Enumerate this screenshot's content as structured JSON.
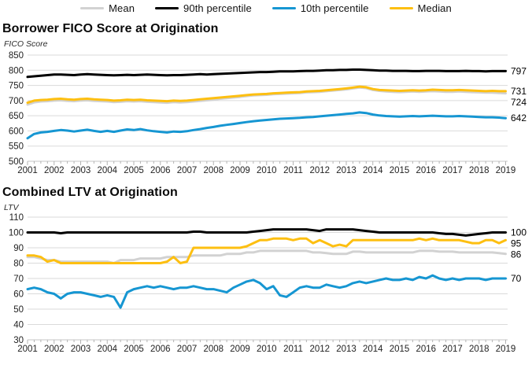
{
  "legend": {
    "items": [
      {
        "label": "Mean",
        "color": "#d2d2d2"
      },
      {
        "label": "90th percentile",
        "color": "#000000"
      },
      {
        "label": "10th percentile",
        "color": "#1696d2"
      },
      {
        "label": "Median",
        "color": "#fdbf11"
      }
    ]
  },
  "colors": {
    "grid": "#dadada",
    "axis": "#c4c4c4",
    "tick": "#b3b3b3",
    "text": "#222222"
  },
  "chart_data": [
    {
      "type": "line",
      "title": "Borrower FICO Score at Origination",
      "ylabel": "FICO Score",
      "xlabel": "",
      "x_start": 2001,
      "x_step": 0.25,
      "xticks": [
        2001,
        2002,
        2003,
        2004,
        2005,
        2006,
        2007,
        2008,
        2009,
        2010,
        2011,
        2012,
        2013,
        2014,
        2015,
        2016,
        2017,
        2018,
        2019
      ],
      "yticks": [
        850,
        800,
        750,
        700,
        650,
        600,
        550,
        500
      ],
      "ylim": [
        500,
        850
      ],
      "grid": "horizontal",
      "legend_position": "top",
      "series": [
        {
          "name": "Mean",
          "color": "#d2d2d2",
          "end_label": "724",
          "values": [
            687,
            694,
            697,
            698,
            700,
            701,
            699,
            698,
            700,
            701,
            699,
            698,
            697,
            695,
            696,
            698,
            697,
            698,
            696,
            695,
            694,
            693,
            695,
            694,
            695,
            697,
            699,
            701,
            703,
            706,
            708,
            710,
            712,
            715,
            717,
            718,
            719,
            721,
            722,
            723,
            724,
            725,
            727,
            728,
            729,
            731,
            733,
            735,
            737,
            740,
            743,
            741,
            735,
            732,
            730,
            729,
            728,
            729,
            730,
            729,
            730,
            731,
            730,
            729,
            729,
            730,
            729,
            728,
            727,
            726,
            726,
            725,
            724
          ]
        },
        {
          "name": "90th percentile",
          "color": "#000000",
          "end_label": "797",
          "values": [
            778,
            780,
            782,
            784,
            786,
            786,
            785,
            784,
            786,
            787,
            786,
            785,
            784,
            783,
            784,
            785,
            784,
            785,
            786,
            785,
            784,
            783,
            784,
            784,
            785,
            786,
            787,
            786,
            787,
            788,
            789,
            790,
            791,
            792,
            793,
            794,
            794,
            795,
            796,
            796,
            796,
            797,
            798,
            798,
            799,
            800,
            800,
            801,
            801,
            802,
            802,
            801,
            800,
            799,
            799,
            798,
            798,
            798,
            797,
            797,
            798,
            798,
            798,
            797,
            797,
            797,
            798,
            797,
            797,
            796,
            797,
            797,
            797
          ]
        },
        {
          "name": "10th percentile",
          "color": "#1696d2",
          "end_label": "642",
          "values": [
            576,
            590,
            595,
            597,
            600,
            603,
            601,
            598,
            601,
            604,
            600,
            597,
            600,
            597,
            601,
            605,
            603,
            606,
            602,
            599,
            597,
            595,
            598,
            597,
            599,
            603,
            606,
            610,
            613,
            617,
            620,
            623,
            626,
            629,
            632,
            634,
            636,
            638,
            640,
            641,
            642,
            643,
            645,
            646,
            648,
            650,
            652,
            654,
            656,
            658,
            661,
            659,
            654,
            651,
            649,
            648,
            647,
            648,
            649,
            648,
            649,
            650,
            649,
            648,
            648,
            649,
            648,
            647,
            646,
            645,
            645,
            644,
            642
          ]
        },
        {
          "name": "Median",
          "color": "#fdbf11",
          "end_label": "731",
          "values": [
            693,
            700,
            702,
            703,
            705,
            706,
            704,
            703,
            705,
            706,
            704,
            703,
            702,
            700,
            701,
            703,
            702,
            703,
            701,
            700,
            699,
            698,
            700,
            699,
            700,
            702,
            704,
            706,
            708,
            710,
            712,
            714,
            716,
            718,
            720,
            721,
            722,
            724,
            725,
            726,
            727,
            728,
            730,
            731,
            732,
            734,
            736,
            738,
            740,
            743,
            746,
            744,
            738,
            735,
            734,
            733,
            732,
            733,
            734,
            733,
            734,
            736,
            735,
            734,
            734,
            735,
            734,
            733,
            732,
            731,
            732,
            731,
            731
          ]
        }
      ]
    },
    {
      "type": "line",
      "title": "Combined LTV at Origination",
      "ylabel": "LTV",
      "xlabel": "",
      "x_start": 2001,
      "x_step": 0.25,
      "xticks": [
        2001,
        2002,
        2003,
        2004,
        2005,
        2006,
        2007,
        2008,
        2009,
        2010,
        2011,
        2012,
        2013,
        2014,
        2015,
        2016,
        2017,
        2018,
        2019
      ],
      "yticks": [
        110,
        100,
        90,
        80,
        70,
        60,
        50,
        40,
        30
      ],
      "ylim": [
        30,
        110
      ],
      "grid": "horizontal",
      "legend_position": "top",
      "series": [
        {
          "name": "Mean",
          "color": "#d2d2d2",
          "end_label": "86",
          "values": [
            84,
            84,
            83,
            82,
            82,
            81,
            81,
            81,
            81,
            81,
            81,
            81,
            81,
            80,
            82,
            82,
            82,
            83,
            83,
            83,
            83,
            84,
            84,
            84,
            84,
            85,
            85,
            85,
            85,
            85,
            86,
            86,
            86,
            87,
            87,
            88,
            88,
            88,
            88,
            88,
            88,
            88,
            88,
            87,
            87,
            86.5,
            86,
            86,
            86,
            87.5,
            87.5,
            87,
            87,
            87,
            87,
            87,
            87,
            87,
            87,
            88,
            88,
            88,
            87.5,
            87.5,
            87.5,
            87,
            87,
            87,
            87,
            87,
            87,
            86.5,
            86
          ]
        },
        {
          "name": "90th percentile",
          "color": "#000000",
          "end_label": "100",
          "values": [
            100,
            100,
            100,
            100,
            100,
            99.5,
            100,
            100,
            100,
            100,
            100,
            100,
            100,
            100,
            100,
            100,
            100,
            100,
            100,
            100,
            100,
            100,
            100,
            100,
            100,
            100.5,
            100.5,
            100,
            100,
            100,
            100,
            100,
            100,
            100,
            100.5,
            101,
            101.5,
            102,
            102,
            102,
            102,
            102,
            102,
            101.5,
            101,
            102,
            102,
            102,
            102,
            102,
            101.5,
            101,
            100.5,
            100,
            100,
            100,
            100,
            100,
            100,
            100,
            100,
            100,
            99.5,
            99,
            99,
            98.5,
            98,
            98.5,
            99,
            99.5,
            100,
            100,
            100
          ]
        },
        {
          "name": "10th percentile",
          "color": "#1696d2",
          "end_label": "70",
          "values": [
            63,
            64,
            63,
            61,
            60,
            57,
            60,
            61,
            61,
            60,
            59,
            58,
            59,
            58,
            51,
            61,
            63,
            64,
            65,
            64,
            65,
            64,
            63,
            64,
            64,
            65,
            64,
            63,
            63,
            62,
            61,
            64,
            66,
            68,
            69,
            67,
            63,
            65,
            59,
            58,
            61,
            64,
            65,
            64,
            64,
            66,
            65,
            64,
            65,
            67,
            68,
            67,
            68,
            69,
            70,
            69,
            69,
            70,
            69,
            71,
            70,
            72,
            70,
            69,
            70,
            69,
            70,
            70,
            70,
            69,
            70,
            70,
            70
          ]
        },
        {
          "name": "Median",
          "color": "#fdbf11",
          "end_label": "95",
          "values": [
            85,
            85,
            84,
            81,
            82,
            80,
            80,
            80,
            80,
            80,
            80,
            80,
            80,
            80,
            80,
            80,
            80,
            80,
            80,
            80,
            80,
            81,
            84,
            80,
            81,
            90,
            90,
            90,
            90,
            90,
            90,
            90,
            90,
            91,
            93,
            95,
            95,
            96,
            96,
            96,
            95,
            96,
            96,
            93,
            95,
            93,
            91,
            92,
            91,
            95,
            95,
            95,
            95,
            95,
            95,
            95,
            95,
            95,
            95,
            96,
            95,
            96,
            95,
            95,
            95,
            95,
            94,
            93,
            93,
            95,
            95,
            93,
            95
          ]
        }
      ]
    }
  ]
}
